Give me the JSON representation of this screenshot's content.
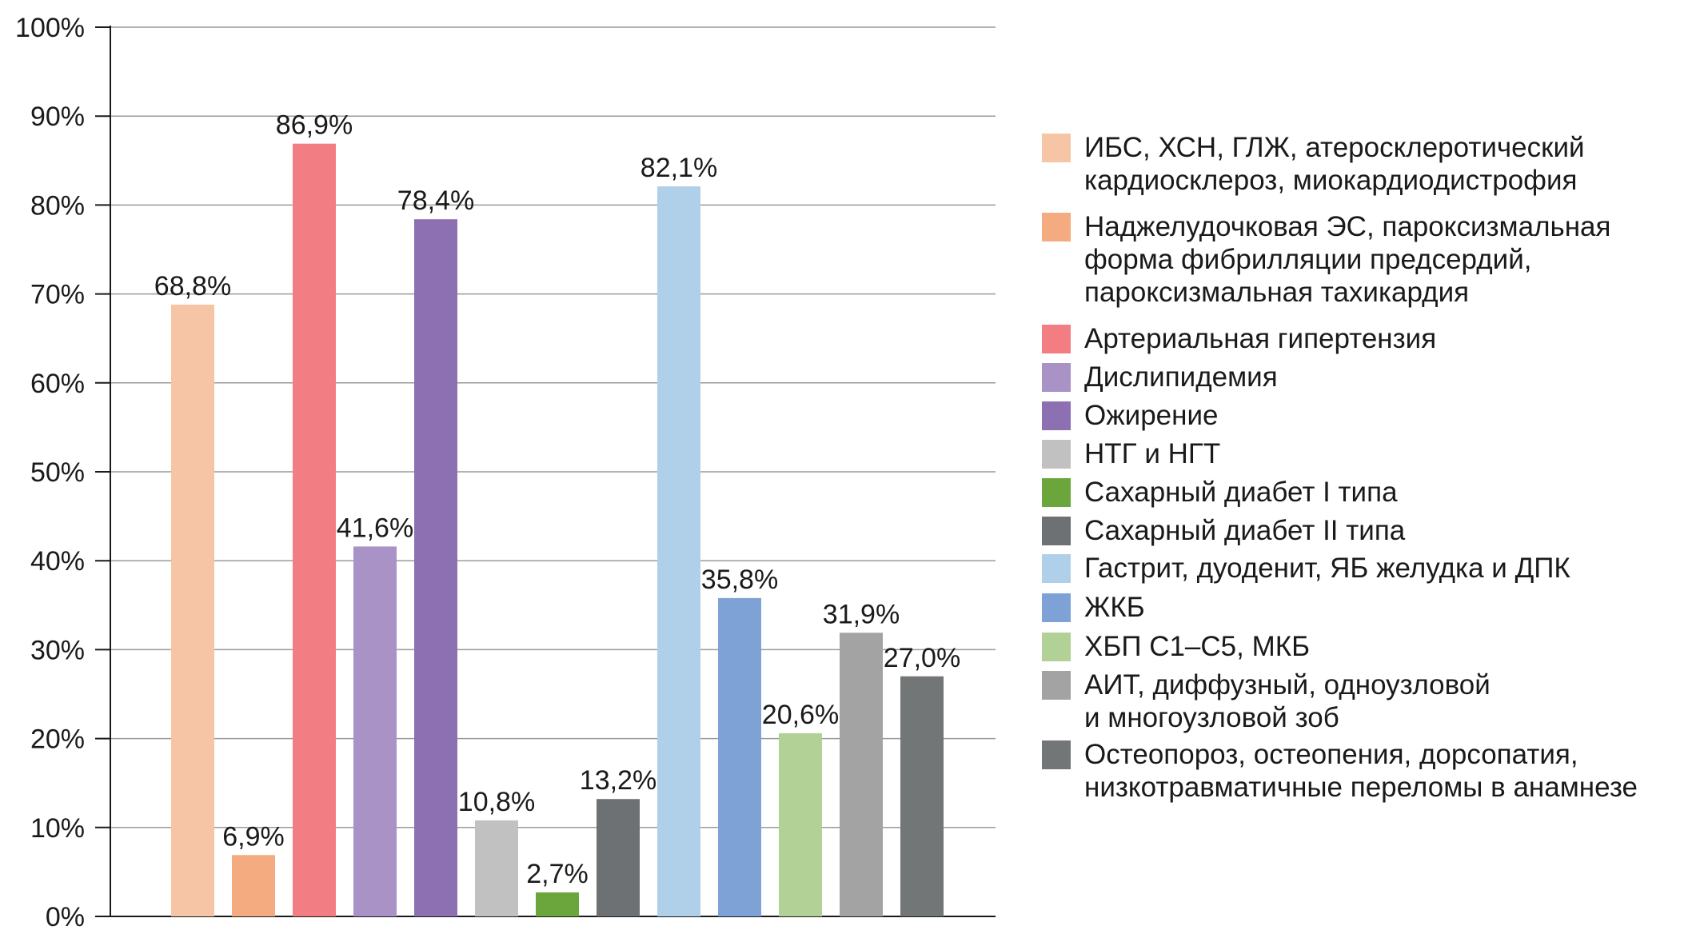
{
  "chart_data": {
    "type": "bar",
    "title": "",
    "xlabel": "",
    "ylabel": "",
    "ylim": [
      0,
      100
    ],
    "yticks": [
      "0%",
      "10%",
      "20%",
      "30%",
      "40%",
      "50%",
      "60%",
      "70%",
      "80%",
      "90%",
      "100%"
    ],
    "grid": true,
    "legend_position": "right",
    "categories": [
      "ИБС, ХСН, ГЛЖ, атеросклеротический кардиосклероз, миокардиодистрофия",
      "Наджелудочковая ЭС, пароксизмальная форма фибрилляции предсердий, пароксизмальная тахикардия",
      "Артериальная гипертензия",
      "Дислипидемия",
      "Ожирение",
      "НТГ и НГТ",
      "Сахарный диабет I типа",
      "Сахарный диабет II типа",
      "Гастрит, дуоденит, ЯБ желудка и ДПК",
      "ЖКБ",
      "ХБП С1–С5, МКБ",
      "АИТ, диффузный, одноузловой и многоузловой зоб",
      "Остеопороз, остеопения, дорсопатия, низкотравматичные переломы в анамнезе"
    ],
    "values": [
      68.8,
      6.9,
      86.9,
      41.6,
      78.4,
      10.8,
      2.7,
      13.2,
      82.1,
      35.8,
      20.6,
      31.9,
      27.0
    ],
    "data_labels": [
      "68,8%",
      "6,9%",
      "86,9%",
      "41,6%",
      "78,4%",
      "10,8%",
      "2,7%",
      "13,2%",
      "82,1%",
      "35,8%",
      "20,6%",
      "31,9%",
      "27,0%"
    ],
    "colors": [
      "#f6c5a5",
      "#f4ab80",
      "#f27d82",
      "#a892c6",
      "#8c70b2",
      "#c0c1c0",
      "#6aa63b",
      "#6d7174",
      "#b0d0ea",
      "#7fa2d6",
      "#b2d196",
      "#a3a3a3",
      "#737676"
    ],
    "legend": [
      {
        "lines": [
          "ИБС, ХСН, ГЛЖ, атеросклеротический",
          "кардиосклероз, миокардиодистрофия"
        ]
      },
      {
        "lines": [
          "Наджелудочковая ЭС, пароксизмальная",
          "форма фибрилляции предсердий,",
          "пароксизмальная тахикардия"
        ]
      },
      {
        "lines": [
          "Артериальная гипертензия"
        ]
      },
      {
        "lines": [
          "Дислипидемия"
        ]
      },
      {
        "lines": [
          "Ожирение"
        ]
      },
      {
        "lines": [
          "НТГ и НГТ"
        ]
      },
      {
        "lines": [
          "Сахарный диабет I типа"
        ]
      },
      {
        "lines": [
          "Сахарный диабет II типа"
        ]
      },
      {
        "lines": [
          "Гастрит, дуоденит, ЯБ желудка и ДПК"
        ]
      },
      {
        "lines": [
          "ЖКБ"
        ]
      },
      {
        "lines": [
          "ХБП С1–С5, МКБ"
        ]
      },
      {
        "lines": [
          "АИТ, диффузный, одноузловой",
          "и многоузловой зоб"
        ]
      },
      {
        "lines": [
          "Остеопороз, остеопения, дорсопатия,",
          "низкотравматичные переломы в анамнезе"
        ]
      }
    ]
  }
}
